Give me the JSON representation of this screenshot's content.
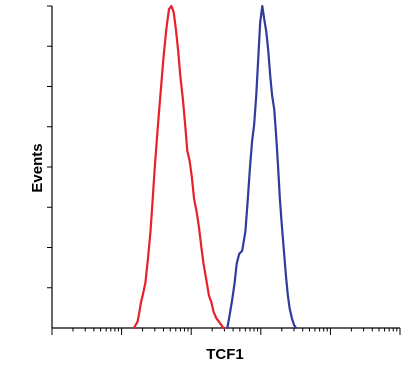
{
  "chart_data": {
    "type": "line",
    "xlabel": "TCF1",
    "ylabel": "Events",
    "x_scale": "log",
    "xlim": [
      1,
      100000
    ],
    "ylim": [
      0,
      100
    ],
    "grid": false,
    "legend": "none",
    "series": [
      {
        "color": "#e8202a",
        "x": [
          15,
          17,
          18,
          19,
          20,
          22,
          24,
          26,
          28,
          30,
          33,
          36,
          40,
          44,
          48,
          52,
          56,
          60,
          65,
          70,
          76,
          82,
          88,
          95,
          102,
          110,
          120,
          130,
          140,
          150,
          165,
          180,
          195,
          210,
          230,
          250,
          270,
          290,
          310
        ],
        "y": [
          0,
          2,
          5,
          8,
          10,
          14,
          22,
          30,
          40,
          50,
          62,
          72,
          84,
          93,
          99,
          100,
          98,
          93,
          86,
          78,
          71,
          63,
          55,
          52,
          47,
          40,
          36,
          31,
          25,
          20,
          15,
          10,
          8,
          5,
          3,
          2,
          1,
          0,
          0
        ]
      },
      {
        "color": "#2e3c9b",
        "x": [
          330,
          350,
          370,
          390,
          420,
          450,
          490,
          540,
          600,
          650,
          700,
          750,
          800,
          860,
          920,
          980,
          1050,
          1120,
          1200,
          1280,
          1370,
          1460,
          1560,
          1660,
          1770,
          1880,
          2000,
          2150,
          2300,
          2450,
          2600,
          2800,
          3000,
          3200
        ],
        "y": [
          0,
          3,
          6,
          9,
          14,
          20,
          23,
          24,
          30,
          40,
          50,
          58,
          63,
          72,
          84,
          95,
          100,
          96,
          92,
          86,
          78,
          72,
          68,
          60,
          50,
          40,
          32,
          24,
          16,
          10,
          6,
          3,
          1,
          0
        ]
      }
    ]
  }
}
